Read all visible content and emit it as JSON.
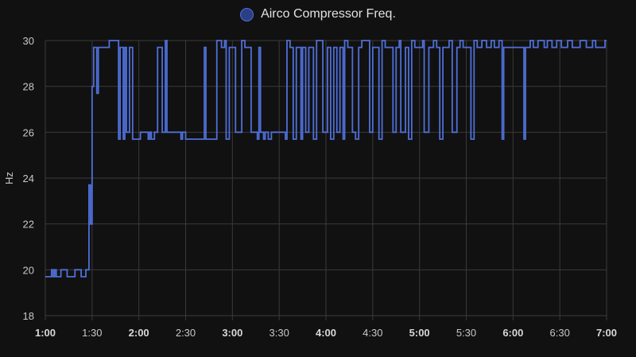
{
  "chart_data": {
    "type": "line",
    "step": true,
    "ylabel": "Hz",
    "ylim": [
      18,
      30
    ],
    "y_ticks": [
      18,
      20,
      22,
      24,
      26,
      28,
      30
    ],
    "x_range": [
      "1:00",
      "7:00"
    ],
    "x_ticks": [
      {
        "label": "1:00",
        "bold": true
      },
      {
        "label": "1:30",
        "bold": false
      },
      {
        "label": "2:00",
        "bold": true
      },
      {
        "label": "2:30",
        "bold": false
      },
      {
        "label": "3:00",
        "bold": true
      },
      {
        "label": "3:30",
        "bold": false
      },
      {
        "label": "4:00",
        "bold": true
      },
      {
        "label": "4:30",
        "bold": false
      },
      {
        "label": "5:00",
        "bold": true
      },
      {
        "label": "5:30",
        "bold": false
      },
      {
        "label": "6:00",
        "bold": true
      },
      {
        "label": "6:30",
        "bold": false
      },
      {
        "label": "7:00",
        "bold": true
      }
    ],
    "grid": true,
    "legend_position": "top-center",
    "series": [
      {
        "name": "Airco Compressor Freq.",
        "color": "#4f6fd8",
        "points": [
          [
            "1:00",
            19.7
          ],
          [
            "1:04",
            20.0
          ],
          [
            "1:05",
            19.7
          ],
          [
            "1:06",
            20.0
          ],
          [
            "1:07",
            19.7
          ],
          [
            "1:10",
            20.0
          ],
          [
            "1:14",
            19.7
          ],
          [
            "1:19",
            20.0
          ],
          [
            "1:23",
            19.7
          ],
          [
            "1:26",
            20.0
          ],
          [
            "1:28",
            23.7
          ],
          [
            "1:29",
            22.0
          ],
          [
            "1:30",
            28.0
          ],
          [
            "1:31",
            29.7
          ],
          [
            "1:33",
            27.7
          ],
          [
            "1:34",
            29.7
          ],
          [
            "1:41",
            30.0
          ],
          [
            "1:47",
            25.7
          ],
          [
            "1:48",
            29.7
          ],
          [
            "1:50",
            25.7
          ],
          [
            "1:51",
            29.7
          ],
          [
            "1:52",
            26.0
          ],
          [
            "1:54",
            29.7
          ],
          [
            "1:56",
            25.7
          ],
          [
            "2:01",
            26.0
          ],
          [
            "2:06",
            25.7
          ],
          [
            "2:07",
            26.0
          ],
          [
            "2:08",
            25.7
          ],
          [
            "2:10",
            26.0
          ],
          [
            "2:12",
            29.7
          ],
          [
            "2:15",
            26.0
          ],
          [
            "2:17",
            30.0
          ],
          [
            "2:18",
            26.0
          ],
          [
            "2:27",
            25.7
          ],
          [
            "2:28",
            26.0
          ],
          [
            "2:30",
            25.7
          ],
          [
            "2:42",
            29.7
          ],
          [
            "2:43",
            25.7
          ],
          [
            "2:50",
            30.0
          ],
          [
            "2:53",
            29.7
          ],
          [
            "2:55",
            30.0
          ],
          [
            "2:56",
            25.7
          ],
          [
            "2:58",
            29.7
          ],
          [
            "3:02",
            26.0
          ],
          [
            "3:06",
            30.0
          ],
          [
            "3:08",
            29.7
          ],
          [
            "3:12",
            26.0
          ],
          [
            "3:16",
            25.7
          ],
          [
            "3:17",
            29.7
          ],
          [
            "3:18",
            26.0
          ],
          [
            "3:20",
            25.7
          ],
          [
            "3:21",
            26.0
          ],
          [
            "3:23",
            25.7
          ],
          [
            "3:25",
            26.0
          ],
          [
            "3:34",
            25.7
          ],
          [
            "3:35",
            30.0
          ],
          [
            "3:37",
            29.7
          ],
          [
            "3:39",
            25.7
          ],
          [
            "3:41",
            29.7
          ],
          [
            "3:44",
            25.7
          ],
          [
            "3:45",
            29.7
          ],
          [
            "3:47",
            26.0
          ],
          [
            "3:49",
            29.7
          ],
          [
            "3:52",
            25.7
          ],
          [
            "3:54",
            30.0
          ],
          [
            "3:58",
            26.0
          ],
          [
            "4:01",
            29.7
          ],
          [
            "4:03",
            25.7
          ],
          [
            "4:05",
            29.7
          ],
          [
            "4:07",
            26.0
          ],
          [
            "4:09",
            29.7
          ],
          [
            "4:11",
            25.7
          ],
          [
            "4:12",
            30.0
          ],
          [
            "4:14",
            29.7
          ],
          [
            "4:17",
            26.0
          ],
          [
            "4:19",
            25.7
          ],
          [
            "4:21",
            29.7
          ],
          [
            "4:23",
            30.0
          ],
          [
            "4:28",
            26.0
          ],
          [
            "4:30",
            29.7
          ],
          [
            "4:34",
            25.7
          ],
          [
            "4:36",
            30.0
          ],
          [
            "4:38",
            29.7
          ],
          [
            "4:43",
            26.0
          ],
          [
            "4:45",
            29.7
          ],
          [
            "4:47",
            30.0
          ],
          [
            "4:48",
            26.0
          ],
          [
            "4:51",
            29.7
          ],
          [
            "4:53",
            25.7
          ],
          [
            "4:55",
            30.0
          ],
          [
            "4:57",
            29.7
          ],
          [
            "5:02",
            30.0
          ],
          [
            "5:03",
            26.0
          ],
          [
            "5:06",
            29.7
          ],
          [
            "5:09",
            30.0
          ],
          [
            "5:11",
            29.7
          ],
          [
            "5:13",
            25.7
          ],
          [
            "5:15",
            29.7
          ],
          [
            "5:19",
            30.0
          ],
          [
            "5:21",
            26.0
          ],
          [
            "5:24",
            29.7
          ],
          [
            "5:26",
            30.0
          ],
          [
            "5:28",
            29.7
          ],
          [
            "5:33",
            25.7
          ],
          [
            "5:35",
            30.0
          ],
          [
            "5:37",
            29.7
          ],
          [
            "5:40",
            30.0
          ],
          [
            "5:43",
            29.7
          ],
          [
            "5:46",
            30.0
          ],
          [
            "5:48",
            29.7
          ],
          [
            "5:51",
            30.0
          ],
          [
            "5:53",
            25.7
          ],
          [
            "5:54",
            29.7
          ],
          [
            "6:07",
            25.7
          ],
          [
            "6:08",
            29.7
          ],
          [
            "6:11",
            30.0
          ],
          [
            "6:13",
            29.7
          ],
          [
            "6:16",
            30.0
          ],
          [
            "6:20",
            29.7
          ],
          [
            "6:22",
            30.0
          ],
          [
            "6:25",
            29.7
          ],
          [
            "6:28",
            30.0
          ],
          [
            "6:31",
            29.7
          ],
          [
            "6:35",
            30.0
          ],
          [
            "6:38",
            29.7
          ],
          [
            "6:43",
            30.0
          ],
          [
            "6:47",
            29.7
          ],
          [
            "6:51",
            30.0
          ],
          [
            "6:53",
            29.7
          ],
          [
            "6:59",
            30.0
          ],
          [
            "7:00",
            30.0
          ]
        ]
      }
    ]
  }
}
